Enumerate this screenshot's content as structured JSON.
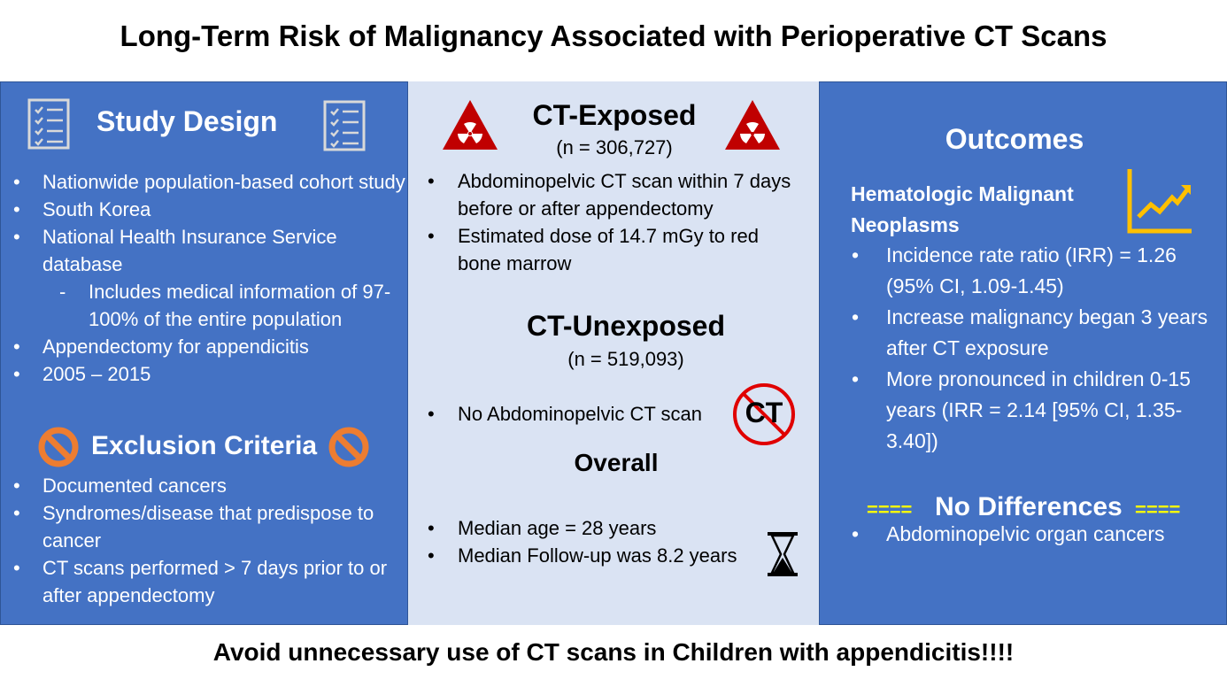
{
  "title": "Long-Term Risk of Malignancy Associated with Perioperative CT Scans",
  "study_design": {
    "heading": "Study Design",
    "items": [
      "Nationwide population-based cohort study",
      "South Korea",
      "National Health Insurance Service database"
    ],
    "sub_item": "Includes medical information of 97-100% of the entire population",
    "items_after": [
      "Appendectomy for appendicitis",
      "2005 – 2015"
    ]
  },
  "exclusion": {
    "heading": "Exclusion Criteria",
    "items": [
      "Documented cancers",
      "Syndromes/disease that predispose to cancer",
      "CT scans performed > 7 days prior to or after appendectomy"
    ]
  },
  "ct_exposed": {
    "heading": "CT-Exposed",
    "n": "(n = 306,727)",
    "items": [
      "Abdominopelvic CT scan within 7 days before or after appendectomy",
      "Estimated dose of 14.7 mGy to red bone marrow"
    ]
  },
  "ct_unexposed": {
    "heading": "CT-Unexposed",
    "n": "(n = 519,093)",
    "items": [
      "No Abdominopelvic CT scan"
    ],
    "icon_text": "CT"
  },
  "overall": {
    "heading": "Overall",
    "items": [
      "Median age = 28 years",
      "Median Follow-up was 8.2 years"
    ]
  },
  "outcomes": {
    "heading": "Outcomes",
    "subheading": "Hematologic Malignant Neoplasms",
    "items": [
      "Incidence rate ratio (IRR) = 1.26 (95% CI, 1.09-1.45)",
      "Increase malignancy began 3 years after CT exposure",
      "More pronounced in children 0-15 years (IRR = 2.14 [95% CI, 1.35-3.40])"
    ]
  },
  "no_differences": {
    "heading": "No Differences",
    "marker": "====",
    "items": [
      "Abdominopelvic organ cancers"
    ]
  },
  "footer": "Avoid unnecessary use of CT scans in Children with appendicitis!!!!",
  "colors": {
    "panel_blue": "#4472c4",
    "panel_light": "#dae3f3",
    "hazard_red": "#c00000",
    "prohibit_orange": "#ed7d31",
    "chart_gold": "#ffc000",
    "marker_yellow": "#ffff00",
    "no_ct_red": "#e00000"
  },
  "icons": [
    "checklist-icon",
    "radiation-hazard-icon",
    "no-ct-icon",
    "prohibited-icon",
    "hourglass-icon",
    "trend-chart-icon"
  ]
}
